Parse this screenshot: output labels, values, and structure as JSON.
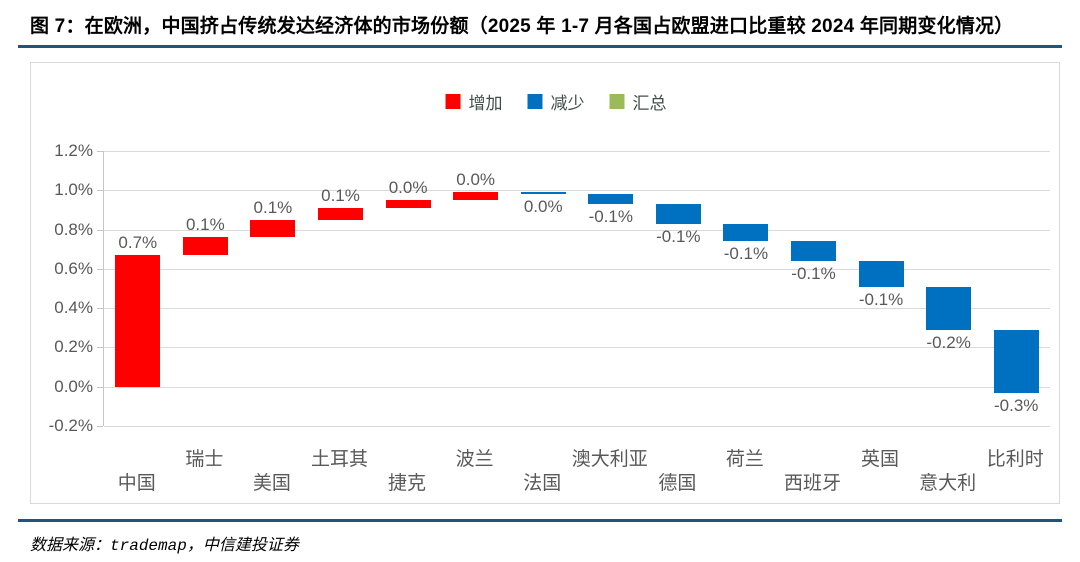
{
  "title": "图 7：在欧洲，中国挤占传统发达经济体的市场份额（2025 年 1-7 月各国占欧盟进口比重较 2024 年同期变化情况）",
  "source": {
    "prefix": "数据来源：",
    "vendor": "trademap",
    "suffix": "，中信建投证券"
  },
  "legend": {
    "items": [
      {
        "label": "增加",
        "color": "#FF0000"
      },
      {
        "label": "减少",
        "color": "#0070C0"
      },
      {
        "label": "汇总",
        "color": "#9BBB59"
      }
    ]
  },
  "chart_data": {
    "type": "bar",
    "subtype": "waterfall",
    "title": "2025 年 1-7 月各国占欧盟进口比重较 2024 年同期变化情况",
    "categories": [
      "中国",
      "瑞士",
      "美国",
      "土耳其",
      "捷克",
      "波兰",
      "法国",
      "澳大利亚",
      "德国",
      "荷兰",
      "西班牙",
      "英国",
      "意大利",
      "比利时"
    ],
    "values": [
      0.67,
      0.09,
      0.09,
      0.06,
      0.04,
      0.04,
      -0.01,
      -0.05,
      -0.1,
      -0.09,
      -0.1,
      -0.13,
      -0.22,
      -0.32
    ],
    "labels": [
      "0.7%",
      "0.1%",
      "0.1%",
      "0.1%",
      "0.0%",
      "0.0%",
      "0.0%",
      "-0.1%",
      "-0.1%",
      "-0.1%",
      "-0.1%",
      "-0.1%",
      "-0.2%",
      "-0.3%"
    ],
    "bars": [
      {
        "category": "中国",
        "label": "0.7%",
        "delta": 0.67,
        "start": 0.0,
        "end": 0.67,
        "group": "增加"
      },
      {
        "category": "瑞士",
        "label": "0.1%",
        "delta": 0.09,
        "start": 0.67,
        "end": 0.76,
        "group": "增加"
      },
      {
        "category": "美国",
        "label": "0.1%",
        "delta": 0.09,
        "start": 0.76,
        "end": 0.85,
        "group": "增加"
      },
      {
        "category": "土耳其",
        "label": "0.1%",
        "delta": 0.06,
        "start": 0.85,
        "end": 0.91,
        "group": "增加"
      },
      {
        "category": "捷克",
        "label": "0.0%",
        "delta": 0.04,
        "start": 0.91,
        "end": 0.95,
        "group": "增加"
      },
      {
        "category": "波兰",
        "label": "0.0%",
        "delta": 0.04,
        "start": 0.95,
        "end": 0.99,
        "group": "增加"
      },
      {
        "category": "法国",
        "label": "0.0%",
        "delta": -0.01,
        "start": 0.99,
        "end": 0.98,
        "group": "减少"
      },
      {
        "category": "澳大利亚",
        "label": "-0.1%",
        "delta": -0.05,
        "start": 0.98,
        "end": 0.93,
        "group": "减少"
      },
      {
        "category": "德国",
        "label": "-0.1%",
        "delta": -0.1,
        "start": 0.93,
        "end": 0.83,
        "group": "减少"
      },
      {
        "category": "荷兰",
        "label": "-0.1%",
        "delta": -0.09,
        "start": 0.83,
        "end": 0.74,
        "group": "减少"
      },
      {
        "category": "西班牙",
        "label": "-0.1%",
        "delta": -0.1,
        "start": 0.74,
        "end": 0.64,
        "group": "减少"
      },
      {
        "category": "英国",
        "label": "-0.1%",
        "delta": -0.13,
        "start": 0.64,
        "end": 0.51,
        "group": "减少"
      },
      {
        "category": "意大利",
        "label": "-0.2%",
        "delta": -0.22,
        "start": 0.51,
        "end": 0.29,
        "group": "减少"
      },
      {
        "category": "比利时",
        "label": "-0.3%",
        "delta": -0.32,
        "start": 0.29,
        "end": -0.03,
        "group": "减少"
      }
    ],
    "colors": {
      "increase": "#FF0000",
      "decrease": "#0070C0",
      "total": "#9BBB59"
    },
    "xlabel": "",
    "ylabel": "",
    "ylim": [
      -0.2,
      1.2
    ],
    "yticks": [
      "1.2%",
      "1.0%",
      "0.8%",
      "0.6%",
      "0.4%",
      "0.2%",
      "0.0%",
      "-0.2%"
    ],
    "grid": true,
    "legend_position": "top"
  }
}
